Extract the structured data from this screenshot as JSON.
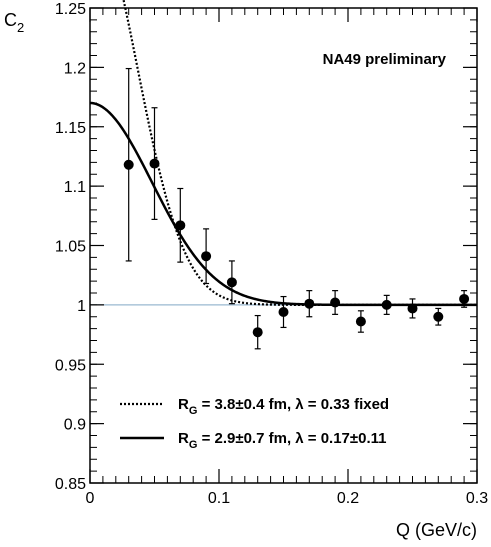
{
  "chart_data": {
    "type": "scatter",
    "title": "",
    "xlabel": "Q (GeV/c)",
    "ylabel_base": "C",
    "ylabel_sub": "2",
    "xlim": [
      0,
      0.3
    ],
    "ylim": [
      0.85,
      1.25
    ],
    "x_ticks": [
      0,
      0.1,
      0.2,
      0.3
    ],
    "x_tick_labels": [
      "0",
      "0.1",
      "0.2",
      "0.3"
    ],
    "y_ticks": [
      0.85,
      0.9,
      0.95,
      1.0,
      1.05,
      1.1,
      1.15,
      1.2,
      1.25
    ],
    "y_tick_labels": [
      "0.85",
      "0.9",
      "0.95",
      "1",
      "1.05",
      "1.1",
      "1.15",
      "1.2",
      "1.25"
    ],
    "grid": false,
    "annotation": "NA49 preliminary",
    "reference_line": {
      "y": 1.0,
      "color": "#9ab8d0"
    },
    "points": {
      "x": [
        0.03,
        0.05,
        0.07,
        0.09,
        0.11,
        0.13,
        0.15,
        0.17,
        0.19,
        0.21,
        0.23,
        0.25,
        0.27,
        0.29
      ],
      "y": [
        1.118,
        1.119,
        1.067,
        1.041,
        1.019,
        0.977,
        0.994,
        1.001,
        1.002,
        0.986,
        1.0,
        0.997,
        0.99,
        1.005
      ],
      "yerr": [
        0.081,
        0.047,
        0.031,
        0.023,
        0.018,
        0.014,
        0.013,
        0.011,
        0.01,
        0.009,
        0.008,
        0.008,
        0.007,
        0.007
      ]
    },
    "series": [
      {
        "name": "R_G = 3.8±0.4 fm, λ = 0.33 fixed",
        "legend_parts": [
          "R",
          "G",
          " = 3.8±0.4 fm, λ = 0.33 fixed"
        ],
        "style": "dotted",
        "R": 3.8,
        "lambda": 0.33,
        "norm": 1.0
      },
      {
        "name": "R_G = 2.9±0.7 fm, λ = 0.17±0.11",
        "legend_parts": [
          "R",
          "G",
          " = 2.9±0.7 fm, λ = 0.17±0.11"
        ],
        "style": "solid",
        "R": 2.9,
        "lambda": 0.17,
        "norm": 1.0
      }
    ],
    "legend_placement": "bottom"
  }
}
